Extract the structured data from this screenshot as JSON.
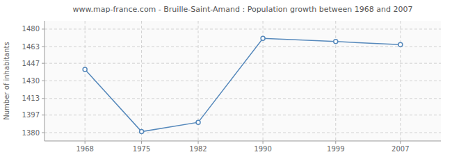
{
  "chart_data": {
    "type": "line",
    "title": "www.map-france.com - Bruille-Saint-Amand : Population growth between 1968 and 2007",
    "y_label": "Number of inhabitants",
    "x": [
      1968,
      1975,
      1982,
      1990,
      1999,
      2007
    ],
    "values": [
      1441,
      1381,
      1390,
      1471,
      1468,
      1465
    ],
    "color": "#5588bb",
    "marker": "circle",
    "xlim": [
      1963,
      2012
    ],
    "xticks": [
      1968,
      1975,
      1982,
      1990,
      1999,
      2007
    ],
    "ylim": [
      1372,
      1488
    ],
    "yticks": [
      1380,
      1397,
      1413,
      1430,
      1447,
      1463,
      1480
    ],
    "grid": true
  }
}
